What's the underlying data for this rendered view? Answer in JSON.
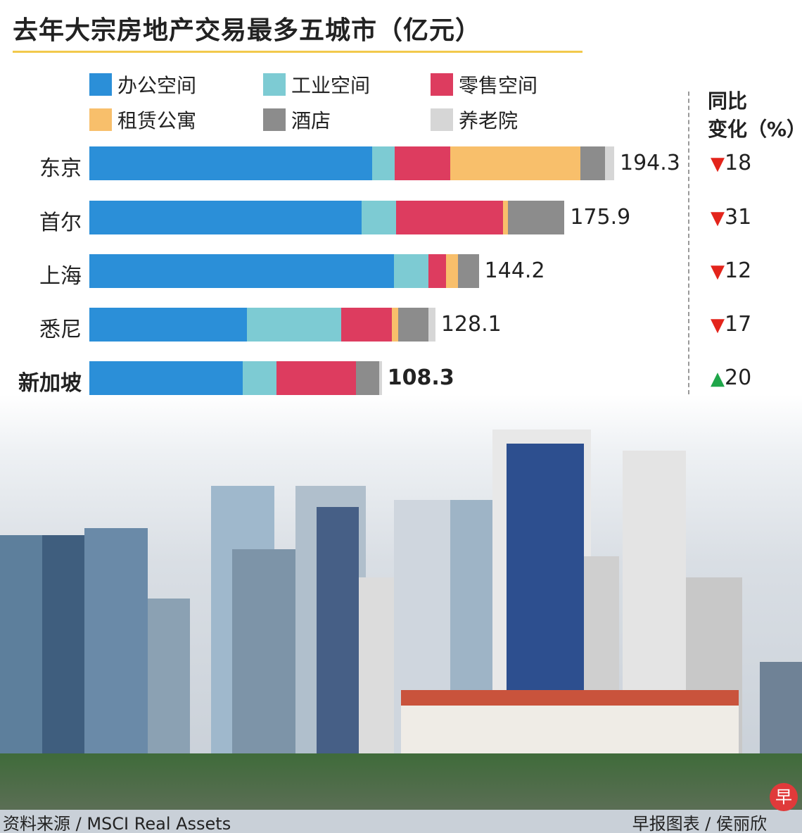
{
  "title": "去年大宗房地产交易最多五城市（亿元）",
  "yoy_header": {
    "line1": "同比",
    "line2": "变化（%）"
  },
  "source": "资料来源 / MSCI Real Assets",
  "credit": "早报图表 / 侯丽欣",
  "logo_text": "早",
  "chart_data": {
    "type": "bar",
    "orientation": "horizontal-stacked",
    "title": "去年大宗房地产交易最多五城市（亿元）",
    "unit": "亿元",
    "categories": [
      "东京",
      "首尔",
      "上海",
      "悉尼",
      "新加坡"
    ],
    "series": [
      {
        "name": "办公空间",
        "color": "#2b8fd8",
        "values": [
          104.7,
          100.8,
          112.7,
          58.3,
          56.8
        ]
      },
      {
        "name": "工业空间",
        "color": "#7dcbd3",
        "values": [
          8.3,
          12.8,
          12.8,
          34.9,
          12.5
        ]
      },
      {
        "name": "零售空间",
        "color": "#dd3c5f",
        "values": [
          20.6,
          39.6,
          6.5,
          18.8,
          29.4
        ]
      },
      {
        "name": "租赁公寓",
        "color": "#f8bf6b",
        "values": [
          48.2,
          1.8,
          4.4,
          2.3,
          0
        ]
      },
      {
        "name": "酒店",
        "color": "#8c8c8c",
        "values": [
          9.1,
          20.9,
          7.8,
          11.2,
          8.6
        ]
      },
      {
        "name": "养老院",
        "color": "#d6d6d6",
        "values": [
          3.4,
          0,
          0,
          2.6,
          1.0
        ]
      }
    ],
    "totals": [
      "194.3",
      "175.9",
      "144.2",
      "128.1",
      "108.3"
    ],
    "yoy_change": [
      {
        "direction": "down",
        "value": "18"
      },
      {
        "direction": "down",
        "value": "31"
      },
      {
        "direction": "down",
        "value": "12"
      },
      {
        "direction": "down",
        "value": "17"
      },
      {
        "direction": "up",
        "value": "20"
      }
    ],
    "highlight": "新加坡",
    "xlim": [
      0,
      194.3
    ],
    "legend": "top"
  }
}
